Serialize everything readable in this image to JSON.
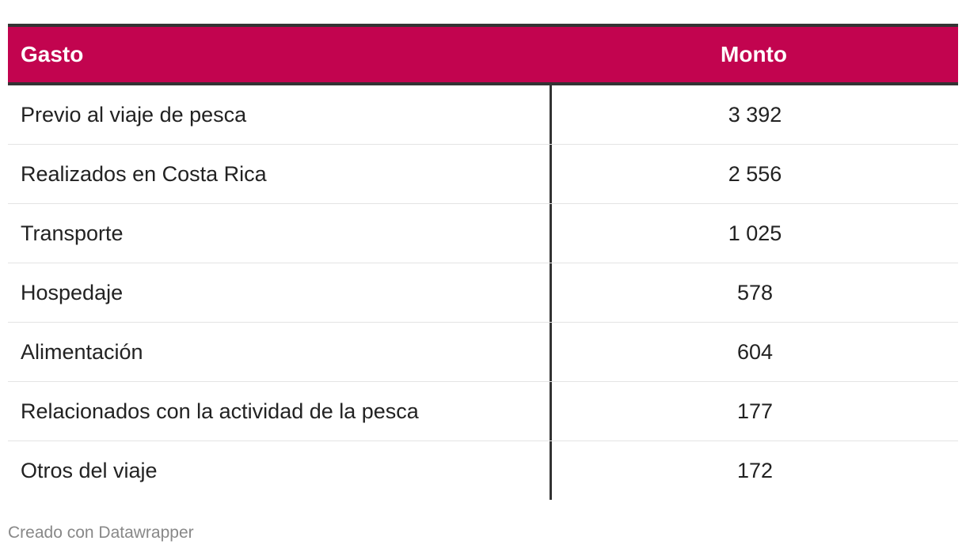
{
  "chart_data": {
    "type": "table",
    "columns": [
      "Gasto",
      "Monto"
    ],
    "rows": [
      {
        "gasto": "Previo al viaje de pesca",
        "monto": "3 392"
      },
      {
        "gasto": "Realizados en Costa Rica",
        "monto": "2 556"
      },
      {
        "gasto": "Transporte",
        "monto": "1 025"
      },
      {
        "gasto": "Hospedaje",
        "monto": "578"
      },
      {
        "gasto": "Alimentación",
        "monto": "604"
      },
      {
        "gasto": "Relacionados con la actividad de la pesca",
        "monto": "177"
      },
      {
        "gasto": "Otros del viaje",
        "monto": "172"
      }
    ],
    "header_color": "#c2044f"
  },
  "footer": {
    "credit": "Creado con Datawrapper"
  }
}
